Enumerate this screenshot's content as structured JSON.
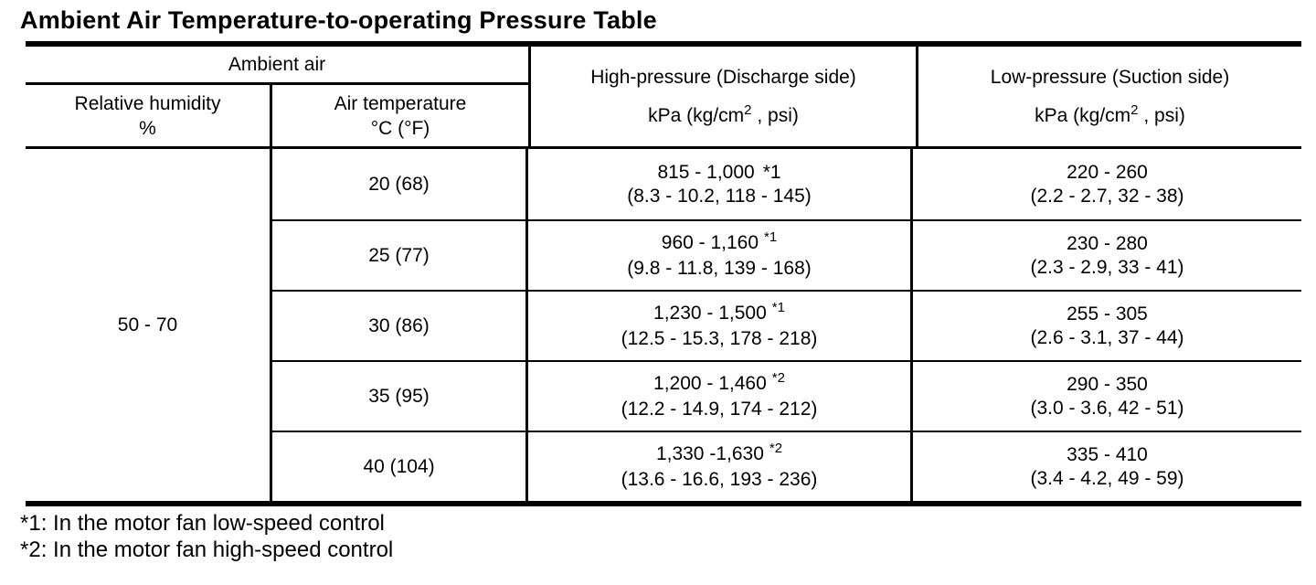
{
  "page": {
    "title": "Ambient Air Temperature-to-operating Pressure Table",
    "footnote_1": "*1: In the motor fan low-speed control",
    "footnote_2": "*2: In the motor fan high-speed control"
  },
  "table": {
    "header": {
      "ambient_air": "Ambient air",
      "relative_humidity_line1": "Relative humidity",
      "relative_humidity_line2": "%",
      "air_temperature_line1": "Air temperature",
      "air_temperature_line2": "°C (°F)",
      "high_pressure_title": "High-pressure (Discharge side)",
      "low_pressure_title": "Low-pressure (Suction side)",
      "unit_prefix": "kPa (kg/cm",
      "unit_sup": "2",
      "unit_suffix": " , psi)"
    },
    "humidity_value": "50 - 70",
    "rows": [
      {
        "temp": "20 (68)",
        "high_range": "815 - 1,000",
        "high_note": "*1",
        "high_detail": "(8.3 - 10.2, 118 - 145)",
        "low_range": "220 - 260",
        "low_detail": "(2.2 - 2.7, 32 - 38)"
      },
      {
        "temp": "25 (77)",
        "high_range": "960 - 1,160",
        "high_note": "*1",
        "high_detail": "(9.8 - 11.8, 139 - 168)",
        "low_range": "230 - 280",
        "low_detail": "(2.3 - 2.9, 33 - 41)"
      },
      {
        "temp": "30 (86)",
        "high_range": "1,230 - 1,500",
        "high_note": "*1",
        "high_detail": "(12.5 - 15.3, 178 - 218)",
        "low_range": "255 - 305",
        "low_detail": "(2.6 - 3.1, 37 - 44)"
      },
      {
        "temp": "35 (95)",
        "high_range": "1,200 - 1,460",
        "high_note": "*2",
        "high_detail": "(12.2 - 14.9, 174 - 212)",
        "low_range": "290 - 350",
        "low_detail": "(3.0 - 3.6, 42 - 51)"
      },
      {
        "temp": "40 (104)",
        "high_range": "1,330 -1,630",
        "high_note": "*2",
        "high_detail": "(13.6 - 16.6, 193 - 236)",
        "low_range": "335 - 410",
        "low_detail": "(3.4 - 4.2, 49 - 59)"
      }
    ]
  }
}
